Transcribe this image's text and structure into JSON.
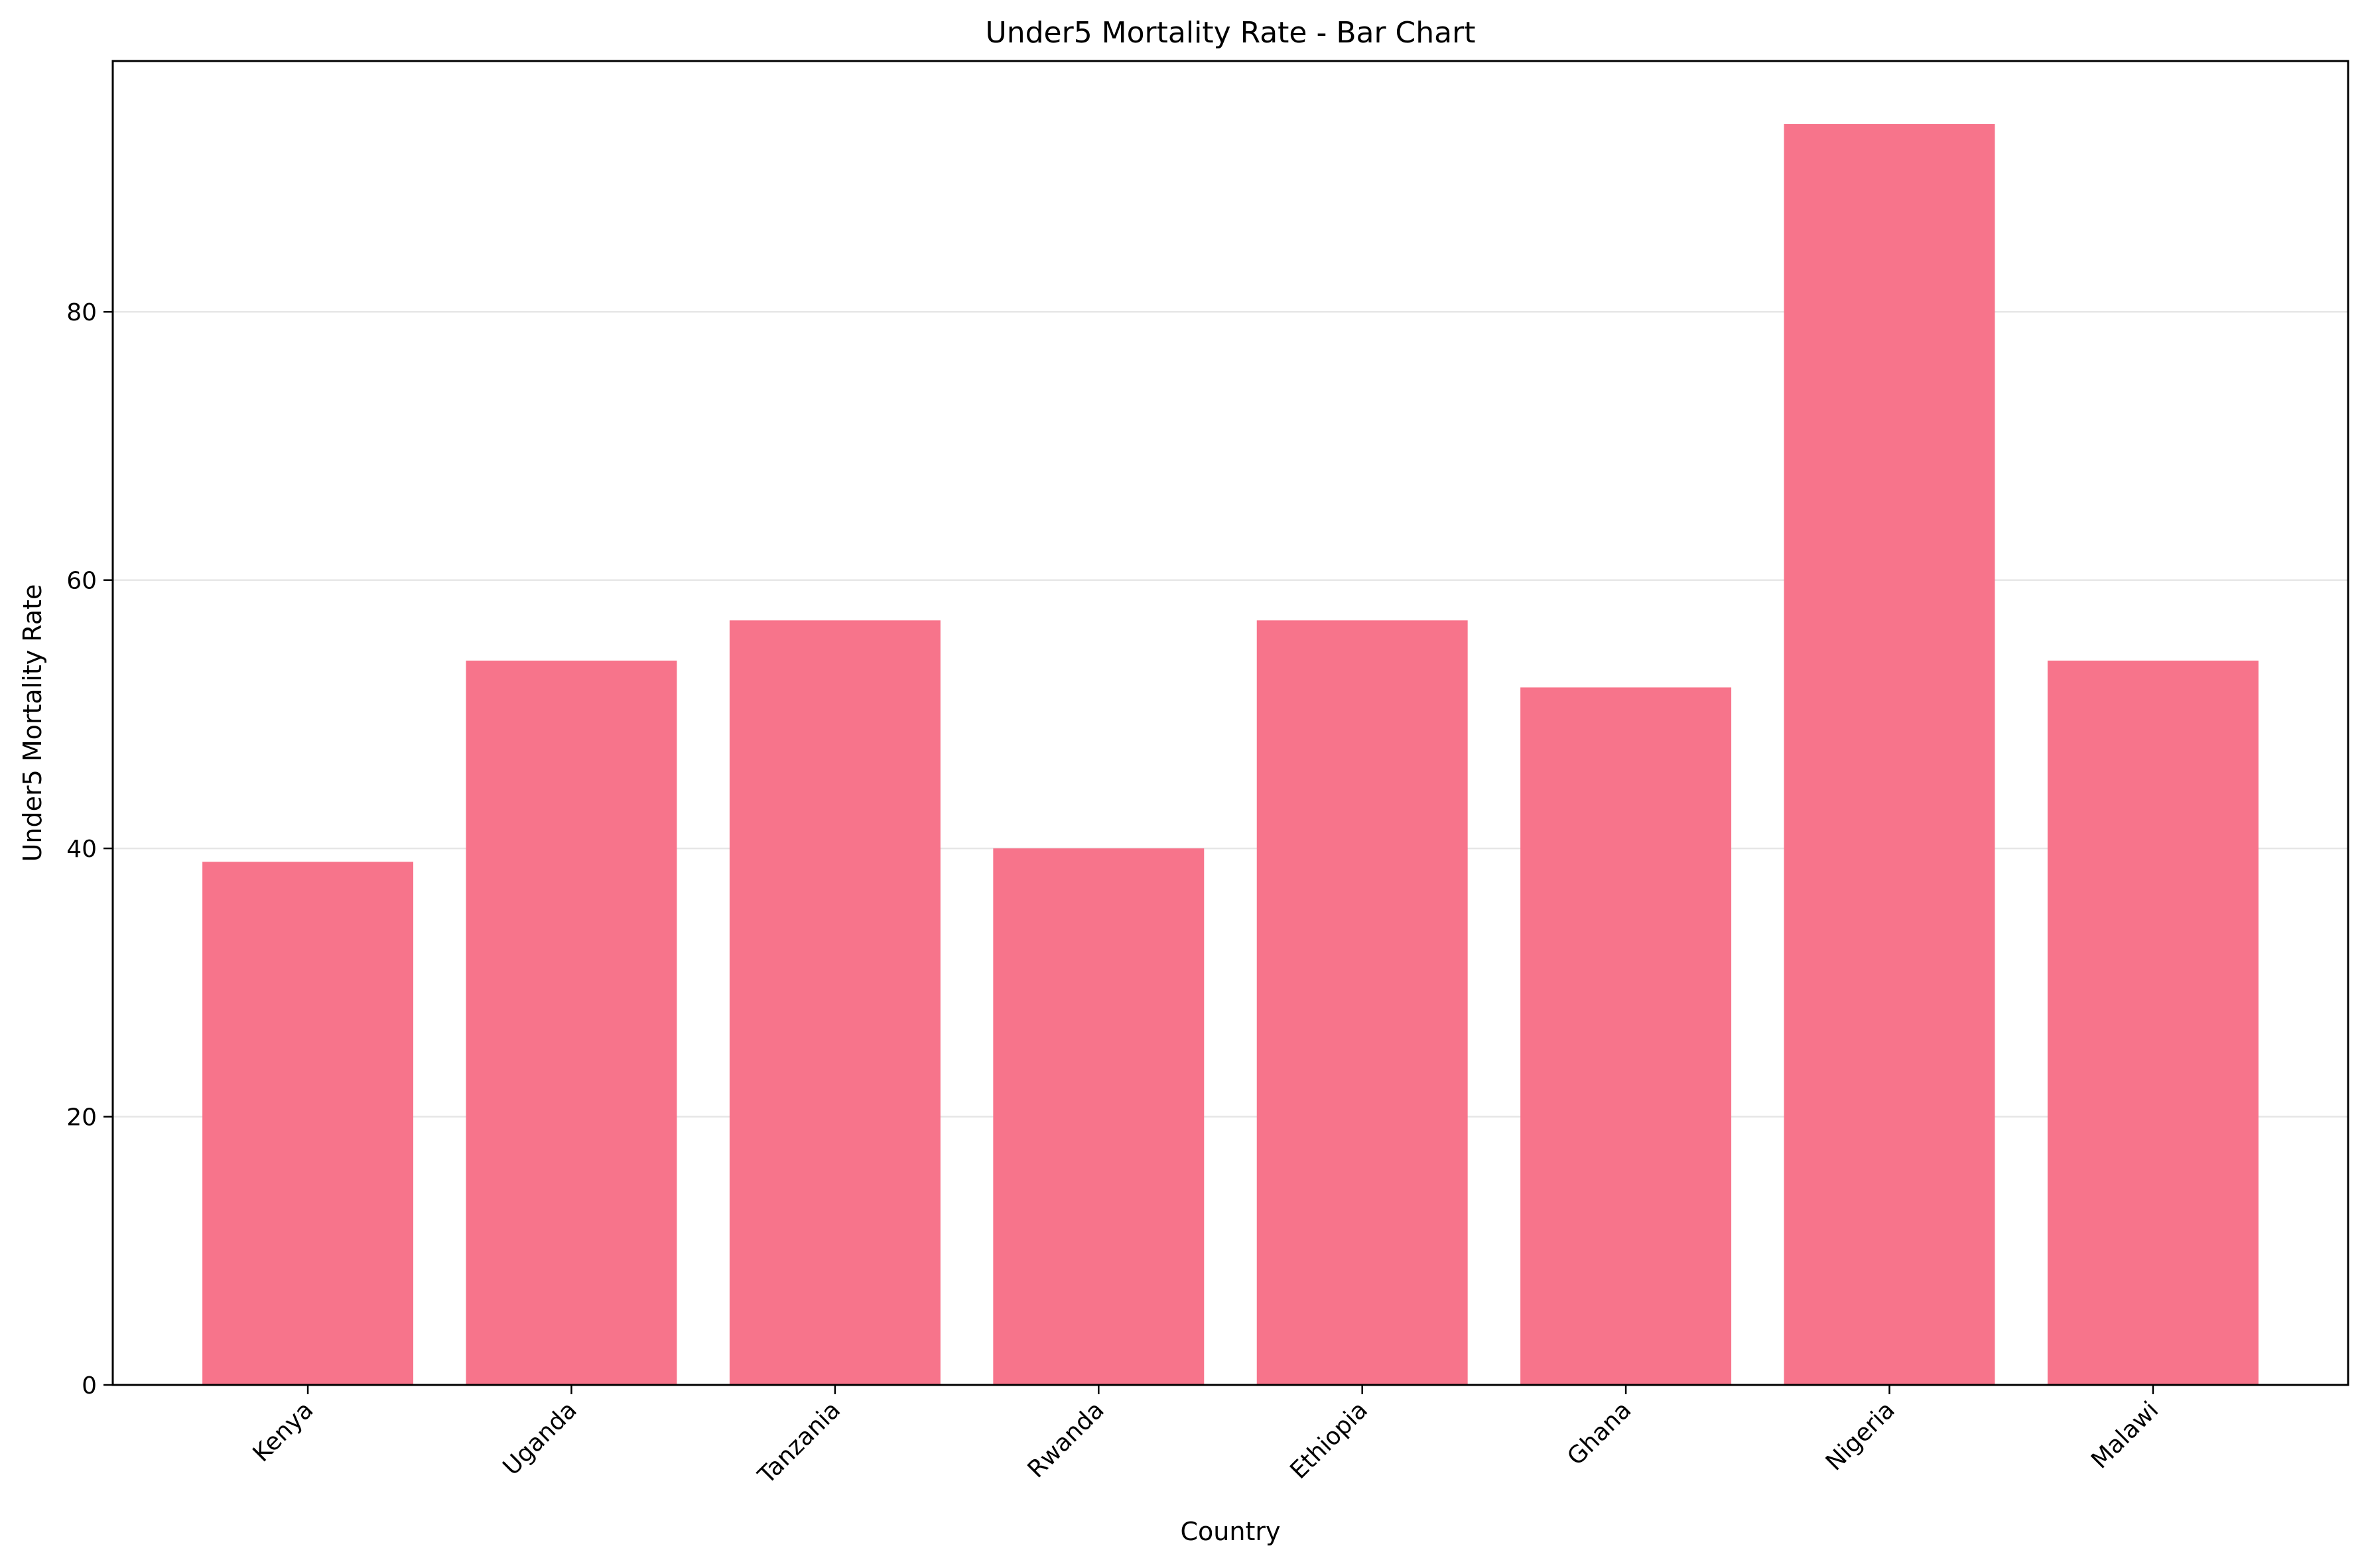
{
  "chart_data": {
    "type": "bar",
    "title": "Under5 Mortality Rate - Bar Chart",
    "xlabel": "Country",
    "ylabel": "Under5 Mortality Rate",
    "categories": [
      "Kenya",
      "Uganda",
      "Tanzania",
      "Rwanda",
      "Ethiopia",
      "Ghana",
      "Nigeria",
      "Malawi"
    ],
    "values": [
      39,
      54,
      57,
      40,
      57,
      52,
      94,
      54
    ],
    "ylim": [
      0,
      98.7
    ],
    "yticks": [
      0,
      20,
      40,
      60,
      80
    ],
    "grid": "horizontal",
    "legend": "none",
    "bar_color": "#f7748b"
  }
}
